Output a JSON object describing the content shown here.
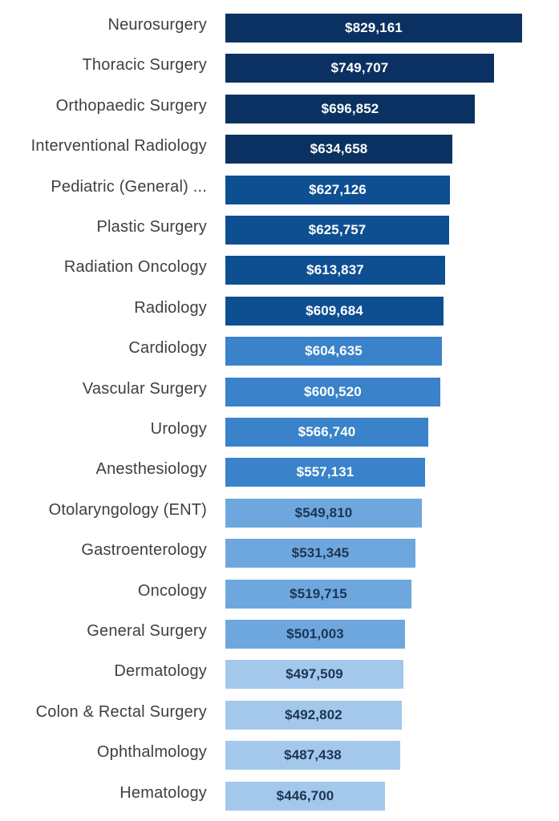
{
  "chart_data": {
    "type": "bar",
    "orientation": "horizontal",
    "title": "",
    "xlabel": "",
    "ylabel": "",
    "xlim": [
      0,
      829161
    ],
    "grid": false,
    "legend": "none",
    "categories": [
      "Neurosurgery",
      "Thoracic Surgery",
      "Orthopaedic Surgery",
      "Interventional Radiology",
      "Pediatric (General) ...",
      "Plastic Surgery",
      "Radiation Oncology",
      "Radiology",
      "Cardiology",
      "Vascular Surgery",
      "Urology",
      "Anesthesiology",
      "Otolaryngology (ENT)",
      "Gastroenterology",
      "Oncology",
      "General Surgery",
      "Dermatology",
      "Colon & Rectal Surgery",
      "Ophthalmology",
      "Hematology"
    ],
    "values": [
      829161,
      749707,
      696852,
      634658,
      627126,
      625757,
      613837,
      609684,
      604635,
      600520,
      566740,
      557131,
      549810,
      531345,
      519715,
      501003,
      497509,
      492802,
      487438,
      446700
    ],
    "data_labels": [
      "$829,161",
      "$749,707",
      "$696,852",
      "$634,658",
      "$627,126",
      "$625,757",
      "$613,837",
      "$609,684",
      "$604,635",
      "$600,520",
      "$566,740",
      "$557,131",
      "$549,810",
      "$531,345",
      "$519,715",
      "$501,003",
      "$497,509",
      "$492,802",
      "$487,438",
      "$446,700"
    ],
    "colors": [
      "#0a3161",
      "#0a3161",
      "#0a3161",
      "#0a3161",
      "#0e4f92",
      "#0e4f92",
      "#0e4f92",
      "#0e4f92",
      "#3a82c9",
      "#3a82c9",
      "#3a82c9",
      "#3a82c9",
      "#6ea7de",
      "#6ea7de",
      "#6ea7de",
      "#6ea7de",
      "#a3c8ec",
      "#a3c8ec",
      "#a3c8ec",
      "#a3c8ec"
    ],
    "label_colors": [
      "#ffffff",
      "#ffffff",
      "#ffffff",
      "#ffffff",
      "#ffffff",
      "#ffffff",
      "#ffffff",
      "#ffffff",
      "#ffffff",
      "#ffffff",
      "#ffffff",
      "#ffffff",
      "#1d3553",
      "#1d3553",
      "#1d3553",
      "#1d3553",
      "#1d3553",
      "#1d3553",
      "#1d3553",
      "#1d3553"
    ]
  }
}
